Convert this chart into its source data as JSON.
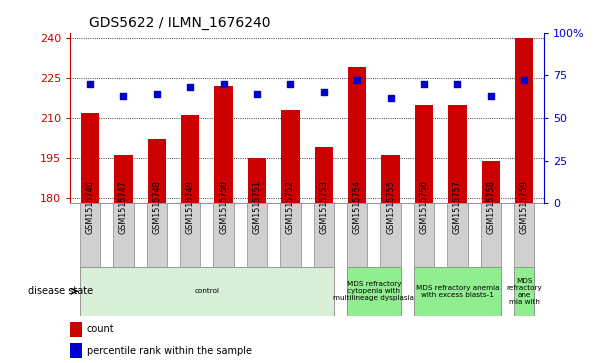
{
  "title": "GDS5622 / ILMN_1676240",
  "samples": [
    "GSM1515746",
    "GSM1515747",
    "GSM1515748",
    "GSM1515749",
    "GSM1515750",
    "GSM1515751",
    "GSM1515752",
    "GSM1515753",
    "GSM1515754",
    "GSM1515755",
    "GSM1515756",
    "GSM1515757",
    "GSM1515758",
    "GSM1515759"
  ],
  "counts": [
    212,
    196,
    202,
    211,
    222,
    195,
    213,
    199,
    229,
    196,
    215,
    215,
    194,
    240
  ],
  "percentile_ranks": [
    70,
    63,
    64,
    68,
    70,
    64,
    70,
    65,
    72,
    62,
    70,
    70,
    63,
    72
  ],
  "ylim_left": [
    178,
    242
  ],
  "ylim_right": [
    0,
    100
  ],
  "yticks_left": [
    180,
    195,
    210,
    225,
    240
  ],
  "yticks_right": [
    0,
    25,
    50,
    75,
    100
  ],
  "bar_color": "#cc0000",
  "dot_color": "#0000cc",
  "disease_groups": [
    {
      "label": "control",
      "start": 0,
      "end": 8,
      "color": "#d8f0d8"
    },
    {
      "label": "MDS refractory\ncytopenia with\nmultilineage dysplasia",
      "start": 8,
      "end": 10,
      "color": "#90ee90"
    },
    {
      "label": "MDS refractory anemia\nwith excess blasts-1",
      "start": 10,
      "end": 13,
      "color": "#90ee90"
    },
    {
      "label": "MDS\nrefractory\nane\nmia with",
      "start": 13,
      "end": 14,
      "color": "#90ee90"
    }
  ],
  "legend_items": [
    {
      "label": "count",
      "color": "#cc0000"
    },
    {
      "label": "percentile rank within the sample",
      "color": "#0000cc"
    }
  ]
}
